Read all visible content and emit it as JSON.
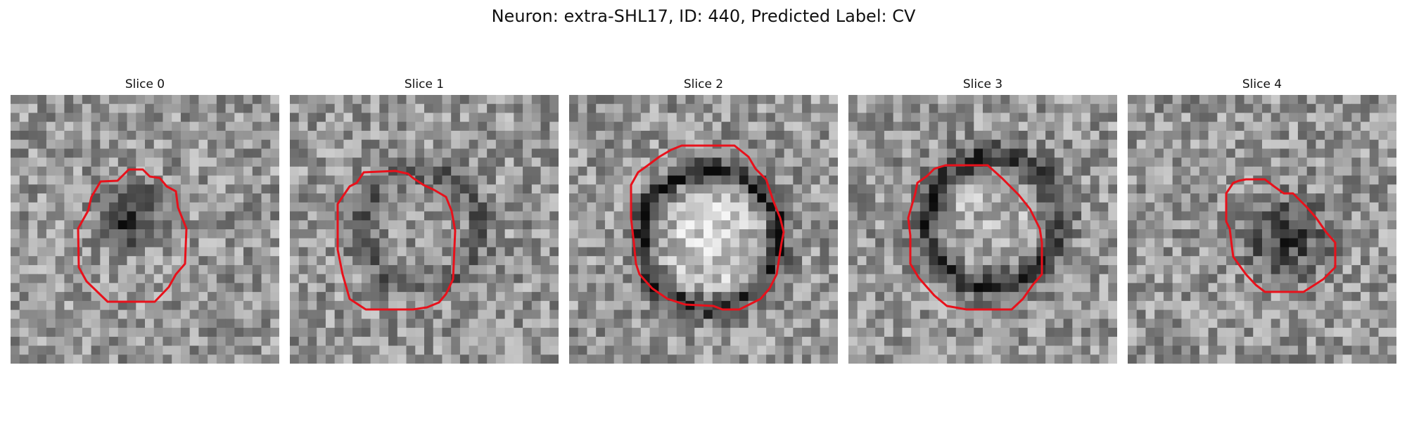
{
  "figure": {
    "title": "Neuron: extra-SHL17, ID: 440, Predicted Label: CV"
  },
  "colors": {
    "contour": "#e8111b",
    "background": "#ffffff"
  },
  "panels": [
    {
      "title": "Slice 0",
      "image": "grayscale microscopy tile: small dark blob, red contour outline"
    },
    {
      "title": "Slice 1",
      "image": "grayscale microscopy tile: faint ring, red contour outline"
    },
    {
      "title": "Slice 2",
      "image": "grayscale microscopy tile: bright disc with dark ring, red contour outline"
    },
    {
      "title": "Slice 3",
      "image": "grayscale microscopy tile: dark ring, red contour outline"
    },
    {
      "title": "Slice 4",
      "image": "grayscale microscopy tile: dark blob, red contour outline"
    }
  ]
}
